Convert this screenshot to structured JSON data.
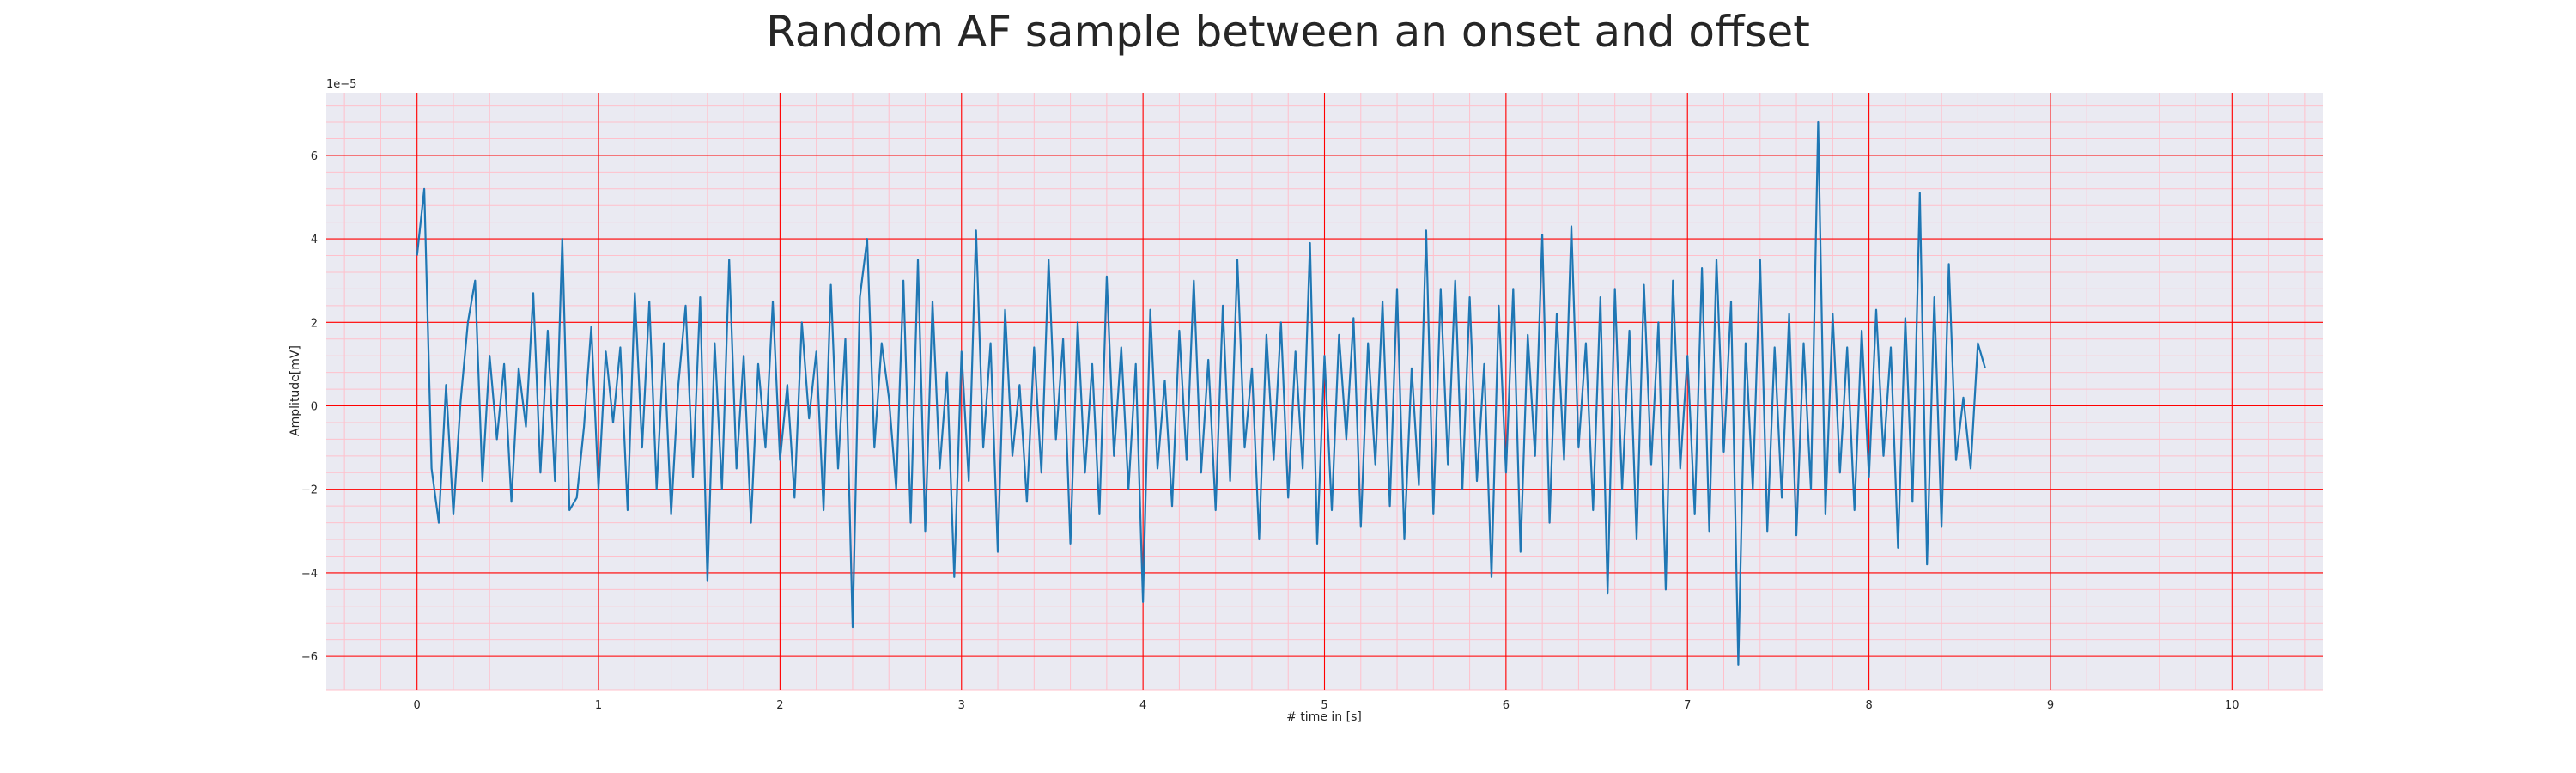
{
  "chart_data": {
    "type": "line",
    "title": "Random AF sample between an onset and offset",
    "xlabel": "# time in [s]",
    "ylabel": "Amplitude[mV]",
    "y_scale_label": "1e−5",
    "xlim": [
      -0.5,
      10.5
    ],
    "ylim": [
      -6.8,
      7.5
    ],
    "x_ticks": [
      0,
      1,
      2,
      3,
      4,
      5,
      6,
      7,
      8,
      9,
      10
    ],
    "y_ticks": [
      -6,
      -4,
      -2,
      0,
      2,
      4,
      6
    ],
    "x_tick_labels": [
      "0",
      "1",
      "2",
      "3",
      "4",
      "5",
      "6",
      "7",
      "8",
      "9",
      "10"
    ],
    "y_tick_labels": [
      "−6",
      "−4",
      "−2",
      "0",
      "2",
      "4",
      "6"
    ],
    "grid": true,
    "minor_grid": true,
    "colors": {
      "line": "#1f77b4",
      "background": "#eaeaf2",
      "major_grid": "#ff0000",
      "minor_grid": "#ffc0cb"
    },
    "series": [
      {
        "x_start": 0,
        "x_step": 0.04,
        "values_1e-5": [
          3.6,
          5.2,
          -1.5,
          -2.8,
          0.5,
          -2.6,
          0.1,
          2.0,
          3.0,
          -1.8,
          1.2,
          -0.8,
          1.0,
          -2.3,
          0.9,
          -0.5,
          2.7,
          -1.6,
          1.8,
          -1.8,
          4.0,
          -2.5,
          -2.2,
          -0.5,
          1.9,
          -2.0,
          1.3,
          -0.4,
          1.4,
          -2.5,
          2.7,
          -1.0,
          2.5,
          -2.0,
          1.5,
          -2.6,
          0.5,
          2.4,
          -1.7,
          2.6,
          -4.2,
          1.5,
          -2.0,
          3.5,
          -1.5,
          1.2,
          -2.8,
          1.0,
          -1.0,
          2.5,
          -1.3,
          0.5,
          -2.2,
          2.0,
          -0.3,
          1.3,
          -2.5,
          2.9,
          -1.5,
          1.6,
          -5.3,
          2.6,
          4.0,
          -1.0,
          1.5,
          0.2,
          -2.0,
          3.0,
          -2.8,
          3.5,
          -3.0,
          2.5,
          -1.5,
          0.8,
          -4.1,
          1.3,
          -1.8,
          4.2,
          -1.0,
          1.5,
          -3.5,
          2.3,
          -1.2,
          0.5,
          -2.3,
          1.4,
          -1.6,
          3.5,
          -0.8,
          1.6,
          -3.3,
          2.0,
          -1.6,
          1.0,
          -2.6,
          3.1,
          -1.2,
          1.4,
          -2.0,
          1.0,
          -4.7,
          2.3,
          -1.5,
          0.6,
          -2.4,
          1.8,
          -1.3,
          3.0,
          -1.6,
          1.1,
          -2.5,
          2.4,
          -1.8,
          3.5,
          -1.0,
          0.9,
          -3.2,
          1.7,
          -1.3,
          2.0,
          -2.2,
          1.3,
          -1.5,
          3.9,
          -3.3,
          1.2,
          -2.5,
          1.7,
          -0.8,
          2.1,
          -2.9,
          1.5,
          -1.4,
          2.5,
          -2.4,
          2.8,
          -3.2,
          0.9,
          -1.9,
          4.2,
          -2.6,
          2.8,
          -1.4,
          3.0,
          -2.0,
          2.6,
          -1.8,
          1.0,
          -4.1,
          2.4,
          -1.6,
          2.8,
          -3.5,
          1.7,
          -1.2,
          4.1,
          -2.8,
          2.2,
          -1.3,
          4.3,
          -1.0,
          1.5,
          -2.5,
          2.6,
          -4.5,
          2.8,
          -2.0,
          1.8,
          -3.2,
          2.9,
          -1.4,
          2.0,
          -4.4,
          3.0,
          -1.5,
          1.2,
          -2.6,
          3.3,
          -3.0,
          3.5,
          -1.1,
          2.5,
          -6.2,
          1.5,
          -2.0,
          3.5,
          -3.0,
          1.4,
          -2.2,
          2.2,
          -3.1,
          1.5,
          -2.0,
          6.8,
          -2.6,
          2.2,
          -1.6,
          1.4,
          -2.5,
          1.8,
          -1.7,
          2.3,
          -1.2,
          1.4,
          -3.4,
          2.1,
          -2.3,
          5.1,
          -3.8,
          2.6,
          -2.9,
          3.4,
          -1.3,
          0.2,
          -1.5,
          1.5,
          0.9
        ]
      }
    ]
  }
}
